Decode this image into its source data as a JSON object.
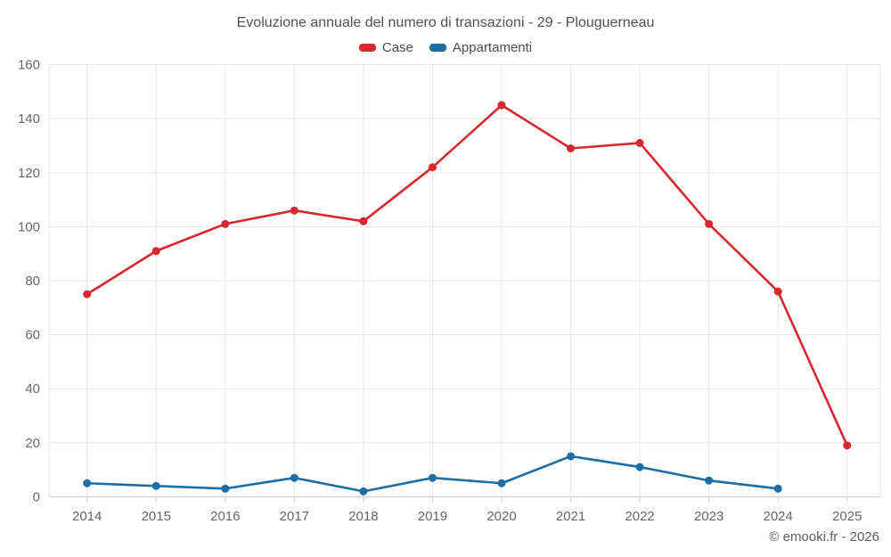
{
  "title": "Evoluzione annuale del numero di transazioni - 29 - Plouguerneau",
  "legend": {
    "items": [
      {
        "label": "Case",
        "color": "#d7282f"
      },
      {
        "label": "Appartamenti",
        "color": "#1c6ea4"
      }
    ]
  },
  "credits": {
    "label": "© emooki.fr - 2026"
  },
  "colors": {
    "case_series": "#d7282f",
    "appartamenti_series": "#1c6ea4",
    "gridline": "#e6e6e6",
    "axis_line": "#cccccc",
    "tick_label": "#666666",
    "title_text": "#4d5154"
  },
  "chart_data": {
    "type": "line",
    "title": "Evoluzione annuale del numero di transazioni - 29 - Plouguerneau",
    "x": [
      2014,
      2015,
      2016,
      2017,
      2018,
      2019,
      2020,
      2021,
      2022,
      2023,
      2024,
      2025
    ],
    "series": [
      {
        "name": "Case",
        "color": "#d7282f",
        "values": [
          75,
          91,
          101,
          106,
          102,
          122,
          145,
          129,
          131,
          101,
          76,
          19
        ]
      },
      {
        "name": "Appartamenti",
        "color": "#1c6ea4",
        "values": [
          5,
          4,
          3,
          7,
          2,
          7,
          5,
          15,
          11,
          6,
          3,
          null
        ]
      }
    ],
    "xlabel": "",
    "ylabel": "",
    "ylim": [
      0,
      160
    ],
    "ytick_step": 20,
    "grid": true,
    "legend_position": "top"
  }
}
